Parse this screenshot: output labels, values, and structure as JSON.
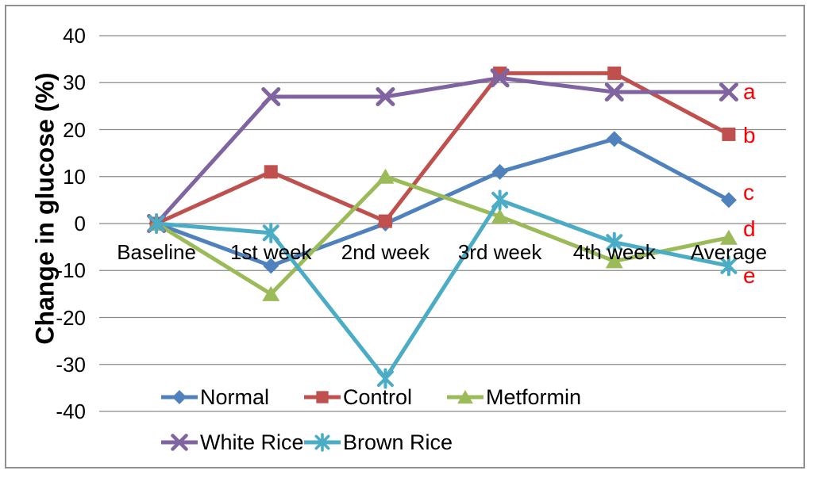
{
  "chart_data": {
    "type": "line",
    "title": "",
    "xlabel": "",
    "ylabel": "Change in glucose (%)",
    "categories": [
      "Baseline",
      "1st week",
      "2nd week",
      "3rd week",
      "4th week",
      "Average"
    ],
    "yticks": [
      40,
      30,
      20,
      10,
      0,
      -10,
      -20,
      -30,
      -40
    ],
    "ylim": [
      -40,
      40
    ],
    "grid": true,
    "legend_position": "bottom",
    "series": [
      {
        "name": "Normal",
        "color": "#4F81BD",
        "marker": "diamond",
        "values": [
          0,
          -9,
          0,
          11,
          18,
          5
        ]
      },
      {
        "name": "Control",
        "color": "#C0504D",
        "marker": "square",
        "values": [
          0,
          11,
          0.5,
          32,
          32,
          19
        ]
      },
      {
        "name": "Metformin",
        "color": "#9BBB59",
        "marker": "triangle",
        "values": [
          0,
          -15,
          10,
          1.5,
          -8,
          -3
        ]
      },
      {
        "name": "White Rice",
        "color": "#8064A2",
        "marker": "x",
        "values": [
          0,
          27,
          27,
          31,
          28,
          28
        ]
      },
      {
        "name": "Brown Rice",
        "color": "#4BACC6",
        "marker": "asterisk",
        "values": [
          0,
          -2,
          -33,
          5,
          -4,
          -9
        ]
      }
    ],
    "annotations": [
      {
        "label": "a",
        "series_index": 3,
        "color": "#FF0000"
      },
      {
        "label": "b",
        "series_index": 1,
        "color": "#FF0000"
      },
      {
        "label": "c",
        "series_index": 0,
        "color": "#FF0000"
      },
      {
        "label": "d",
        "series_index": 2,
        "color": "#FF0000"
      },
      {
        "label": "e",
        "series_index": 4,
        "color": "#FF0000"
      }
    ],
    "gridline_color": "#8A8A8A",
    "frame_color": "#8F8F8F",
    "annotation_color": "#FF0000"
  }
}
